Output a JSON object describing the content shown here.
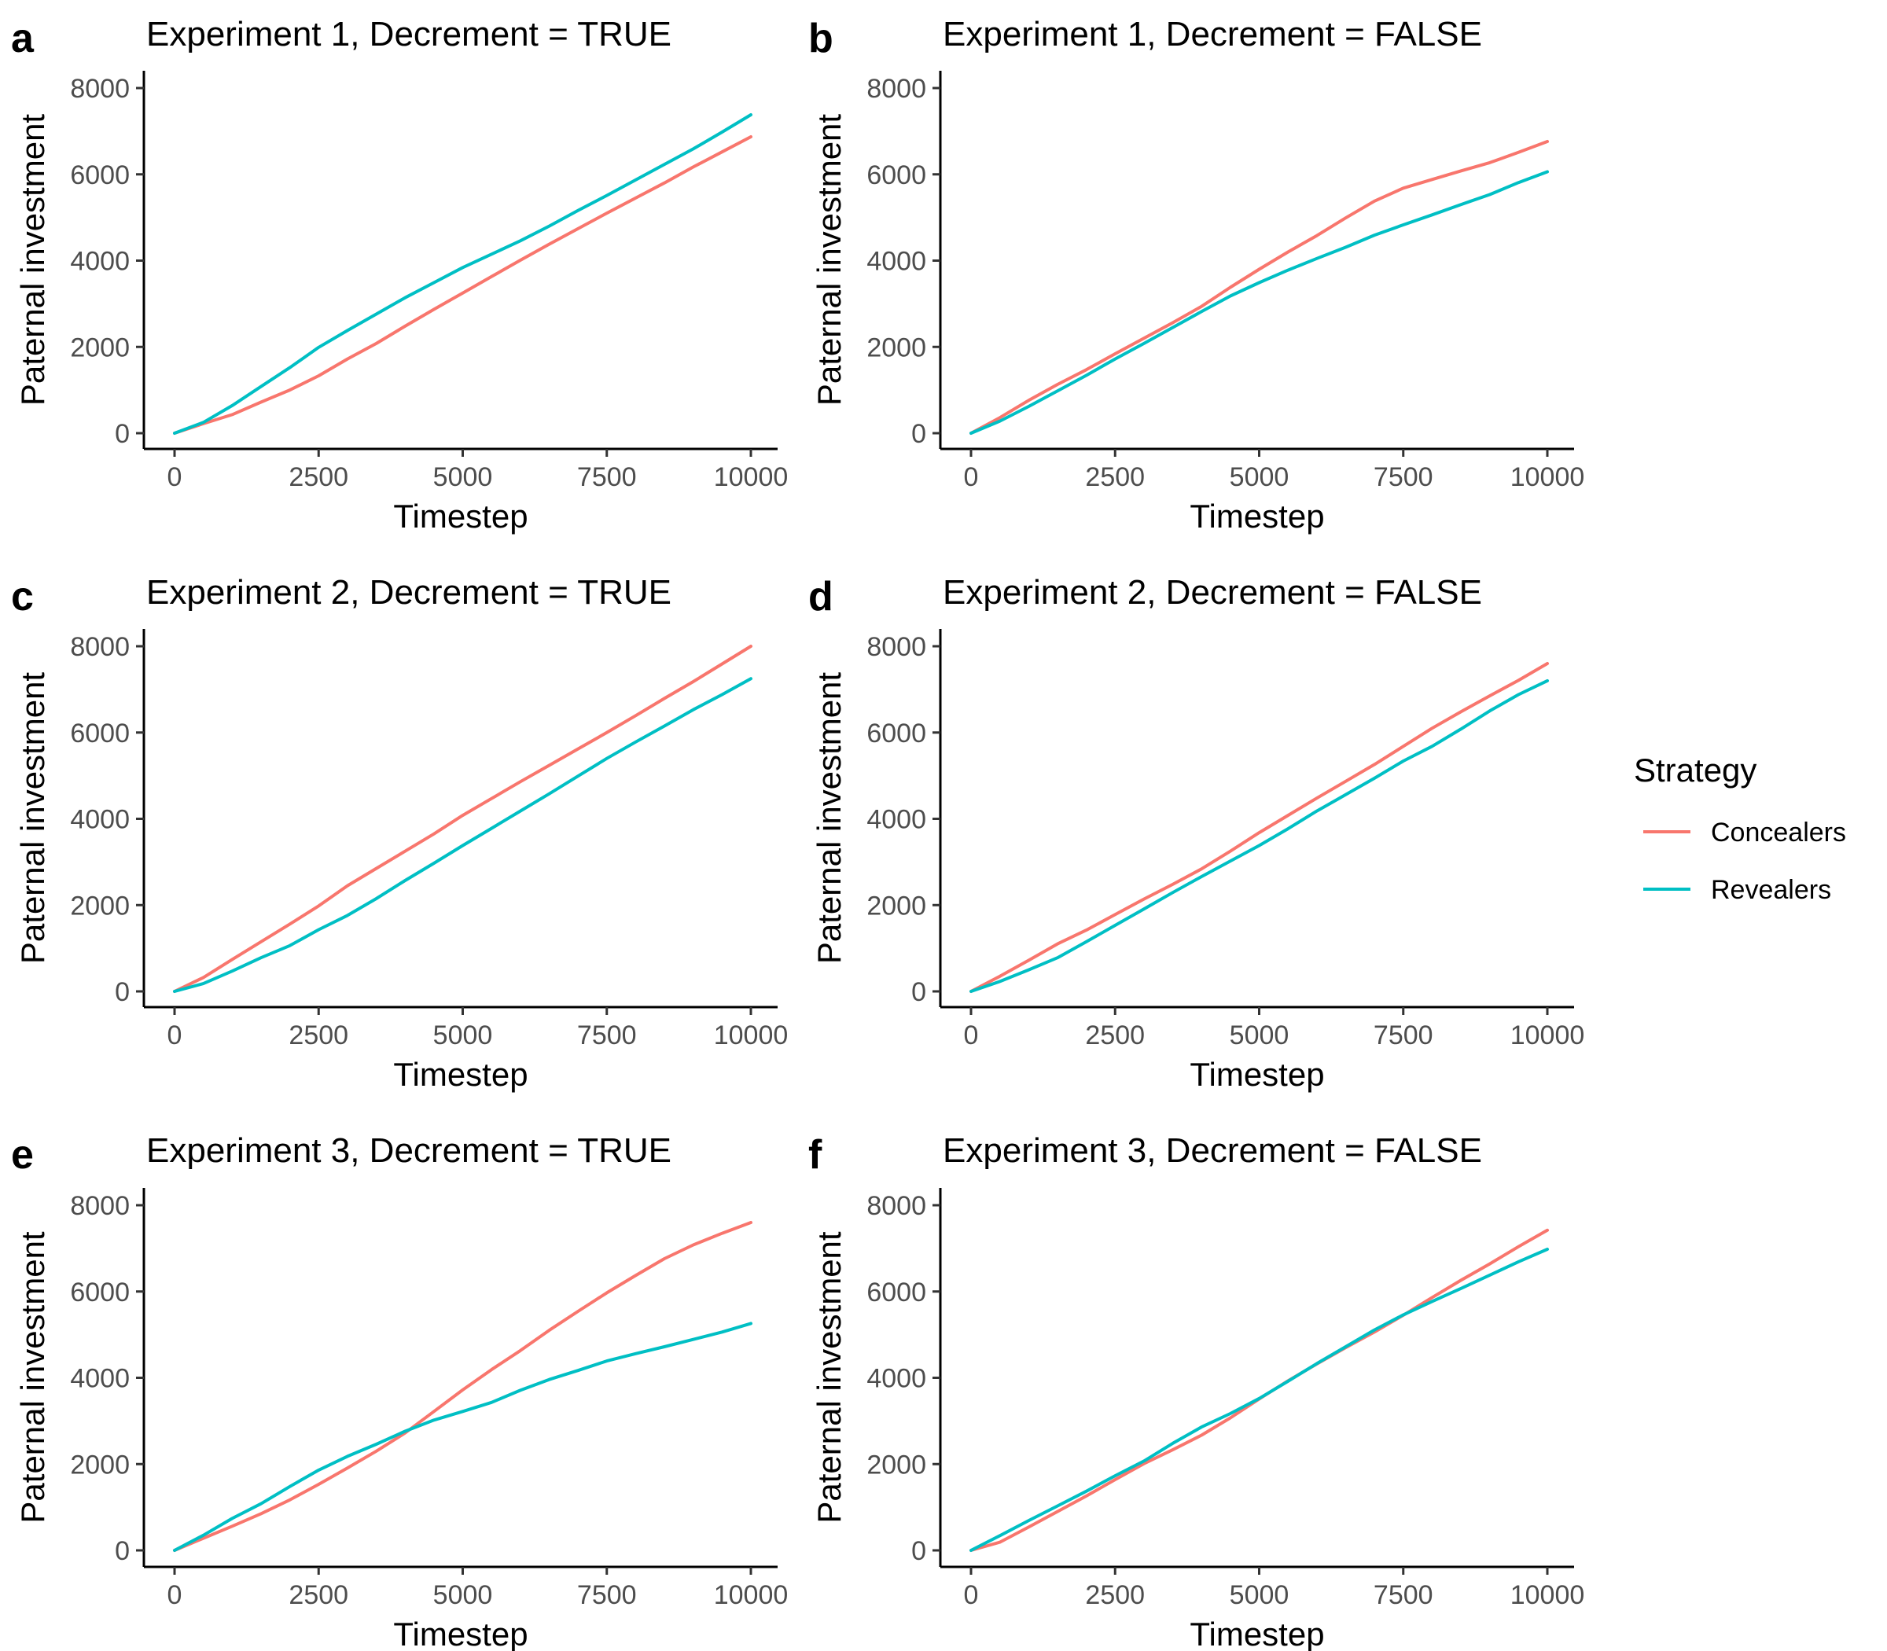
{
  "colors": {
    "Concealers": "#F8766D",
    "Revealers": "#00BFC4",
    "axis": "#000000",
    "tick_text": "#4d4d4d"
  },
  "legend": {
    "title": "Strategy",
    "items": [
      {
        "label": "Concealers",
        "color": "#F8766D"
      },
      {
        "label": "Revealers",
        "color": "#00BFC4"
      }
    ]
  },
  "chart_data": [
    {
      "panel": "a",
      "type": "line",
      "title": "Experiment 1, Decrement = TRUE",
      "xlabel": "Timestep",
      "ylabel": "Paternal investment",
      "xlim": [
        0,
        10000
      ],
      "ylim": [
        0,
        8000
      ],
      "xticks": [
        0,
        2500,
        5000,
        7500,
        10000
      ],
      "yticks": [
        0,
        2000,
        4000,
        6000,
        8000
      ],
      "x": [
        0,
        500,
        1000,
        1500,
        2000,
        2500,
        3000,
        3500,
        4000,
        4500,
        5000,
        5500,
        6000,
        6500,
        7000,
        7500,
        8000,
        8500,
        9000,
        9500,
        10000
      ],
      "series": [
        {
          "name": "Concealers",
          "values": [
            0,
            220,
            430,
            720,
            1000,
            1330,
            1720,
            2080,
            2480,
            2870,
            3250,
            3630,
            4010,
            4380,
            4740,
            5100,
            5450,
            5800,
            6170,
            6520,
            6870
          ]
        },
        {
          "name": "Revealers",
          "values": [
            0,
            250,
            640,
            1080,
            1520,
            1990,
            2380,
            2760,
            3140,
            3490,
            3840,
            4150,
            4460,
            4800,
            5160,
            5510,
            5870,
            6230,
            6590,
            6980,
            7380
          ]
        }
      ]
    },
    {
      "panel": "b",
      "type": "line",
      "title": "Experiment 1, Decrement = FALSE",
      "xlabel": "Timestep",
      "ylabel": "Paternal investment",
      "xlim": [
        0,
        10000
      ],
      "ylim": [
        0,
        8000
      ],
      "xticks": [
        0,
        2500,
        5000,
        7500,
        10000
      ],
      "yticks": [
        0,
        2000,
        4000,
        6000,
        8000
      ],
      "x": [
        0,
        500,
        1000,
        1500,
        2000,
        2500,
        3000,
        3500,
        4000,
        4500,
        5000,
        5500,
        6000,
        6500,
        7000,
        7500,
        8000,
        8500,
        9000,
        9500,
        10000
      ],
      "series": [
        {
          "name": "Concealers",
          "values": [
            0,
            360,
            760,
            1130,
            1470,
            1840,
            2200,
            2560,
            2940,
            3380,
            3800,
            4200,
            4580,
            4990,
            5380,
            5680,
            5880,
            6080,
            6270,
            6510,
            6760
          ]
        },
        {
          "name": "Revealers",
          "values": [
            0,
            280,
            620,
            980,
            1340,
            1720,
            2080,
            2450,
            2820,
            3180,
            3490,
            3780,
            4050,
            4310,
            4590,
            4830,
            5060,
            5300,
            5530,
            5810,
            6060
          ]
        }
      ]
    },
    {
      "panel": "c",
      "type": "line",
      "title": "Experiment 2, Decrement = TRUE",
      "xlabel": "Timestep",
      "ylabel": "Paternal investment",
      "xlim": [
        0,
        10000
      ],
      "ylim": [
        0,
        8000
      ],
      "xticks": [
        0,
        2500,
        5000,
        7500,
        10000
      ],
      "yticks": [
        0,
        2000,
        4000,
        6000,
        8000
      ],
      "x": [
        0,
        500,
        1000,
        1500,
        2000,
        2500,
        3000,
        3500,
        4000,
        4500,
        5000,
        5500,
        6000,
        6500,
        7000,
        7500,
        8000,
        8500,
        9000,
        9500,
        10000
      ],
      "series": [
        {
          "name": "Concealers",
          "values": [
            0,
            320,
            740,
            1150,
            1560,
            1980,
            2450,
            2850,
            3250,
            3650,
            4080,
            4470,
            4860,
            5240,
            5620,
            6000,
            6390,
            6790,
            7180,
            7590,
            8000
          ]
        },
        {
          "name": "Revealers",
          "values": [
            0,
            180,
            470,
            780,
            1060,
            1430,
            1760,
            2150,
            2570,
            2970,
            3380,
            3780,
            4180,
            4580,
            4990,
            5400,
            5780,
            6150,
            6530,
            6880,
            7250
          ]
        }
      ]
    },
    {
      "panel": "d",
      "type": "line",
      "title": "Experiment 2, Decrement = FALSE",
      "xlabel": "Timestep",
      "ylabel": "Paternal investment",
      "xlim": [
        0,
        10000
      ],
      "ylim": [
        0,
        8000
      ],
      "xticks": [
        0,
        2500,
        5000,
        7500,
        10000
      ],
      "yticks": [
        0,
        2000,
        4000,
        6000,
        8000
      ],
      "x": [
        0,
        500,
        1000,
        1500,
        2000,
        2500,
        3000,
        3500,
        4000,
        4500,
        5000,
        5500,
        6000,
        6500,
        7000,
        7500,
        8000,
        8500,
        9000,
        9500,
        10000
      ],
      "series": [
        {
          "name": "Concealers",
          "values": [
            0,
            350,
            720,
            1100,
            1420,
            1780,
            2140,
            2480,
            2840,
            3250,
            3680,
            4080,
            4480,
            4870,
            5260,
            5680,
            6100,
            6480,
            6850,
            7210,
            7600
          ]
        },
        {
          "name": "Revealers",
          "values": [
            0,
            230,
            500,
            780,
            1150,
            1530,
            1910,
            2290,
            2660,
            3020,
            3380,
            3770,
            4180,
            4560,
            4940,
            5340,
            5680,
            6080,
            6500,
            6880,
            7200
          ]
        }
      ]
    },
    {
      "panel": "e",
      "type": "line",
      "title": "Experiment 3, Decrement = TRUE",
      "xlabel": "Timestep",
      "ylabel": "Paternal investment",
      "xlim": [
        0,
        10000
      ],
      "ylim": [
        0,
        8000
      ],
      "xticks": [
        0,
        2500,
        5000,
        7500,
        10000
      ],
      "yticks": [
        0,
        2000,
        4000,
        6000,
        8000
      ],
      "x": [
        0,
        500,
        1000,
        1500,
        2000,
        2500,
        3000,
        3500,
        4000,
        4500,
        5000,
        5500,
        6000,
        6500,
        7000,
        7500,
        8000,
        8500,
        9000,
        9500,
        10000
      ],
      "series": [
        {
          "name": "Concealers",
          "values": [
            0,
            280,
            560,
            850,
            1170,
            1530,
            1910,
            2300,
            2720,
            3220,
            3720,
            4190,
            4630,
            5100,
            5540,
            5970,
            6370,
            6760,
            7080,
            7350,
            7600
          ]
        },
        {
          "name": "Revealers",
          "values": [
            0,
            350,
            740,
            1080,
            1480,
            1860,
            2180,
            2460,
            2760,
            3020,
            3220,
            3430,
            3710,
            3960,
            4170,
            4390,
            4560,
            4720,
            4890,
            5060,
            5260
          ]
        }
      ]
    },
    {
      "panel": "f",
      "type": "line",
      "title": "Experiment 3, Decrement = FALSE",
      "xlabel": "Timestep",
      "ylabel": "Paternal investment",
      "xlim": [
        0,
        10000
      ],
      "ylim": [
        0,
        8000
      ],
      "xticks": [
        0,
        2500,
        5000,
        7500,
        10000
      ],
      "yticks": [
        0,
        2000,
        4000,
        6000,
        8000
      ],
      "x": [
        0,
        500,
        1000,
        1500,
        2000,
        2500,
        3000,
        3500,
        4000,
        4500,
        5000,
        5500,
        6000,
        6500,
        7000,
        7500,
        8000,
        8500,
        9000,
        9500,
        10000
      ],
      "series": [
        {
          "name": "Concealers",
          "values": [
            0,
            190,
            540,
            900,
            1260,
            1640,
            2010,
            2330,
            2670,
            3070,
            3510,
            3930,
            4320,
            4700,
            5060,
            5450,
            5860,
            6260,
            6640,
            7040,
            7420
          ]
        },
        {
          "name": "Revealers",
          "values": [
            0,
            340,
            690,
            1030,
            1370,
            1730,
            2070,
            2480,
            2860,
            3170,
            3520,
            3920,
            4330,
            4720,
            5110,
            5460,
            5770,
            6070,
            6380,
            6690,
            6980
          ]
        }
      ]
    }
  ]
}
